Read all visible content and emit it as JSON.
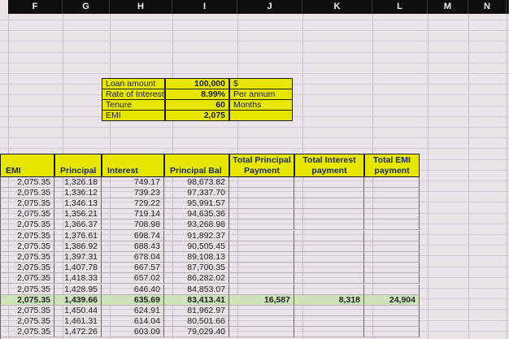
{
  "columns": [
    "F",
    "G",
    "H",
    "I",
    "J",
    "K",
    "L",
    "M",
    "N"
  ],
  "loan_box": {
    "rows": [
      {
        "label": "Loan amount",
        "value": "100,000",
        "unit": "$"
      },
      {
        "label": "Rate of Interest",
        "value": "8.99%",
        "unit": "Per annum"
      },
      {
        "label": "Tenure",
        "value": "60",
        "unit": "Months"
      },
      {
        "label": "EMI",
        "value": "2,075",
        "unit": ""
      }
    ]
  },
  "table": {
    "headers": [
      "EMI",
      "Principal",
      "Interest",
      "Principal Bal",
      "Total Principal Payment",
      "Total Interest payment",
      "Total EMI payment"
    ],
    "rows": [
      [
        "2,075.35",
        "1,326.18",
        "749.17",
        "98,673.82"
      ],
      [
        "2,075.35",
        "1,336.12",
        "739.23",
        "97,337.70"
      ],
      [
        "2,075.35",
        "1,346.13",
        "729.22",
        "95,991.57"
      ],
      [
        "2,075.35",
        "1,356.21",
        "719.14",
        "94,635.36"
      ],
      [
        "2,075.35",
        "1,366.37",
        "708.98",
        "93,268.98"
      ],
      [
        "2,075.35",
        "1,376.61",
        "698.74",
        "91,892.37"
      ],
      [
        "2,075.35",
        "1,386.92",
        "688.43",
        "90,505.45"
      ],
      [
        "2,075.35",
        "1,397.31",
        "678.04",
        "89,108.13"
      ],
      [
        "2,075.35",
        "1,407.78",
        "667.57",
        "87,700.35"
      ],
      [
        "2,075.35",
        "1,418.33",
        "657.02",
        "86,282.02"
      ],
      [
        "2,075.35",
        "1,428.95",
        "646.40",
        "84,853.07"
      ],
      [
        "2,075.35",
        "1,439.66",
        "635.69",
        "83,413.41"
      ],
      [
        "2,075.35",
        "1,450.44",
        "624.91",
        "81,962.97"
      ],
      [
        "2,075.35",
        "1,461.31",
        "614.04",
        "80,501.66"
      ],
      [
        "2,075.35",
        "1,472.26",
        "603.09",
        "79,029.40"
      ]
    ],
    "highlight_row": 11,
    "totals": [
      "16,587",
      "8,318",
      "24,904"
    ]
  }
}
